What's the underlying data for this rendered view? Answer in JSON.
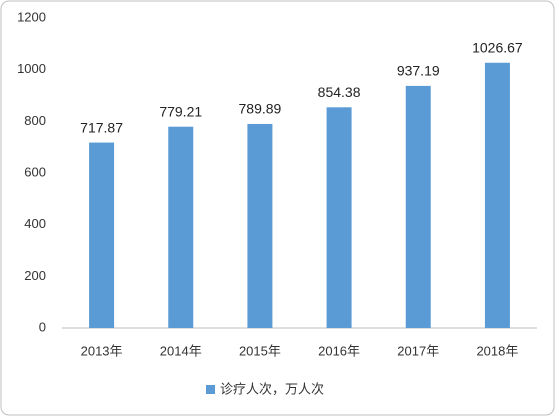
{
  "chart_data": {
    "type": "bar",
    "categories": [
      "2013年",
      "2014年",
      "2015年",
      "2016年",
      "2017年",
      "2018年"
    ],
    "series": [
      {
        "name": "诊疗人次，万人次",
        "color": "#5b9bd5",
        "values": [
          717.87,
          779.21,
          789.89,
          854.38,
          937.19,
          1026.67
        ]
      }
    ],
    "ylim": [
      0,
      1200
    ],
    "yticks": [
      0,
      200,
      400,
      600,
      800,
      1000,
      1200
    ],
    "grid": false,
    "legend": "bottom"
  }
}
